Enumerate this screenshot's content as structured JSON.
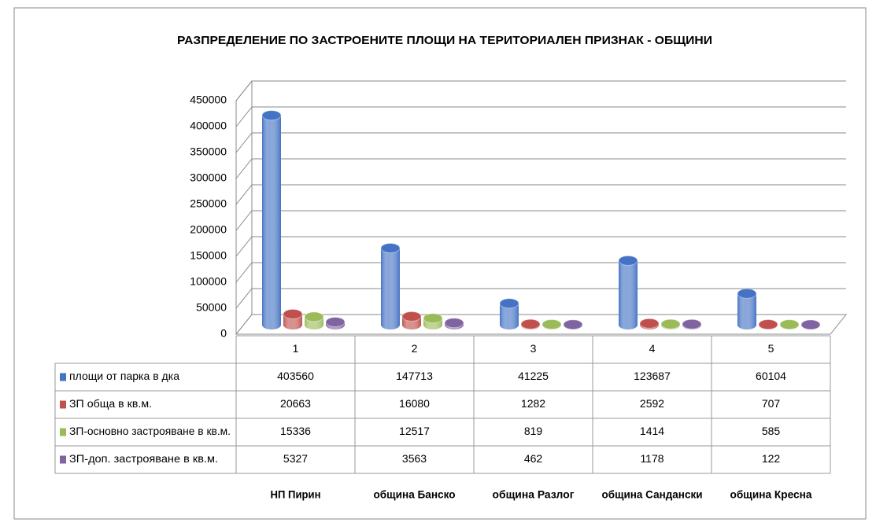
{
  "chart_data": {
    "type": "bar3d",
    "title": "РАЗПРЕДЕЛЕНИЕ ПО ЗАСТРОЕНИТЕ ПЛОЩИ НА ТЕРИТОРИАЛЕН ПРИЗНАК - ОБЩИНИ",
    "categories": [
      "1",
      "2",
      "3",
      "4",
      "5"
    ],
    "group_labels": [
      "НП Пирин",
      "община Банско",
      "община Разлог",
      "община Сандански",
      "община Кресна"
    ],
    "series": [
      {
        "name": "площи от парка в дка",
        "color": "#4472c4",
        "values": [
          403560,
          147713,
          41225,
          123687,
          60104
        ]
      },
      {
        "name": "ЗП обща в кв.м.",
        "color": "#c0504d",
        "values": [
          20663,
          16080,
          1282,
          2592,
          707
        ]
      },
      {
        "name": "ЗП-основно застрояване в кв.м.",
        "color": "#9bbb59",
        "values": [
          15336,
          12517,
          819,
          1414,
          585
        ]
      },
      {
        "name": "ЗП-доп. застрояване в кв.м.",
        "color": "#8064a2",
        "values": [
          5327,
          3563,
          462,
          1178,
          122
        ]
      }
    ],
    "ylim": [
      0,
      450000
    ],
    "yticks": [
      0,
      50000,
      100000,
      150000,
      200000,
      250000,
      300000,
      350000,
      400000,
      450000
    ],
    "grid": true
  }
}
